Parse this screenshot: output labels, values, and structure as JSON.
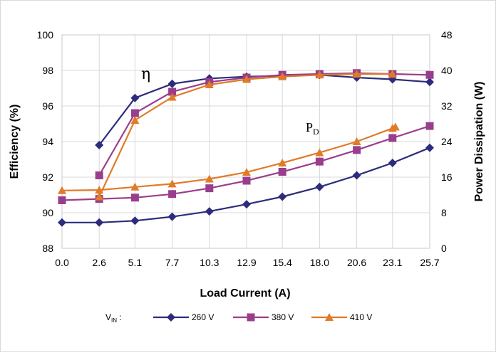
{
  "chart_data": {
    "type": "line",
    "xlabel": "Load Current (A)",
    "ylabel": "Efficiency (%)",
    "y2label": "Power Dissipation (W)",
    "categories": [
      "0.0",
      "2.6",
      "5.1",
      "7.7",
      "10.3",
      "12.9",
      "15.4",
      "18.0",
      "20.6",
      "23.1",
      "25.7"
    ],
    "x": [
      0.0,
      2.6,
      5.1,
      7.7,
      10.3,
      12.9,
      15.4,
      18.0,
      20.6,
      23.1,
      25.7
    ],
    "ylim": [
      88,
      100
    ],
    "yticks": [
      "88",
      "90",
      "92",
      "94",
      "96",
      "98",
      "100"
    ],
    "y2lim": [
      0,
      48
    ],
    "y2ticks": [
      "0",
      "8",
      "16",
      "24",
      "32",
      "40",
      "48"
    ],
    "grid": true,
    "legend_position": "bottom",
    "legend_prefix_main": "V",
    "legend_prefix_sub": "IN",
    "legend_prefix_suffix": " :",
    "annotations": {
      "efficiency_symbol": "η",
      "power_main": "P",
      "power_sub": "D"
    },
    "series": [
      {
        "name": "260 V",
        "color": "#2b2c7c",
        "marker": "diamond",
        "efficiency": [
          null,
          93.8,
          96.45,
          97.25,
          97.55,
          97.65,
          97.7,
          97.75,
          97.6,
          97.5,
          97.35
        ],
        "efficiency_start_index": 1,
        "power": [
          5.8,
          5.8,
          6.2,
          7.1,
          8.3,
          9.9,
          11.6,
          13.8,
          16.4,
          19.2,
          22.6
        ]
      },
      {
        "name": "380 V",
        "color": "#993e8c",
        "marker": "square",
        "efficiency": [
          null,
          92.1,
          95.6,
          96.8,
          97.35,
          97.6,
          97.75,
          97.8,
          97.85,
          97.8,
          97.75
        ],
        "efficiency_start_index": 1,
        "power": [
          10.8,
          11.1,
          11.4,
          12.2,
          13.5,
          15.2,
          17.2,
          19.5,
          22.1,
          24.8,
          27.5
        ]
      },
      {
        "name": "410 V",
        "color": "#e07b28",
        "marker": "triangle",
        "efficiency": [
          null,
          90.9,
          95.2,
          96.5,
          97.2,
          97.5,
          97.65,
          97.75,
          97.8,
          97.8,
          null
        ],
        "efficiency_start_index": 1,
        "power": [
          13.0,
          13.1,
          13.8,
          14.5,
          15.6,
          17.1,
          19.2,
          21.5,
          24.0,
          27.0,
          null
        ],
        "power_extra_point": [
          23.3,
          27.3
        ]
      }
    ]
  }
}
